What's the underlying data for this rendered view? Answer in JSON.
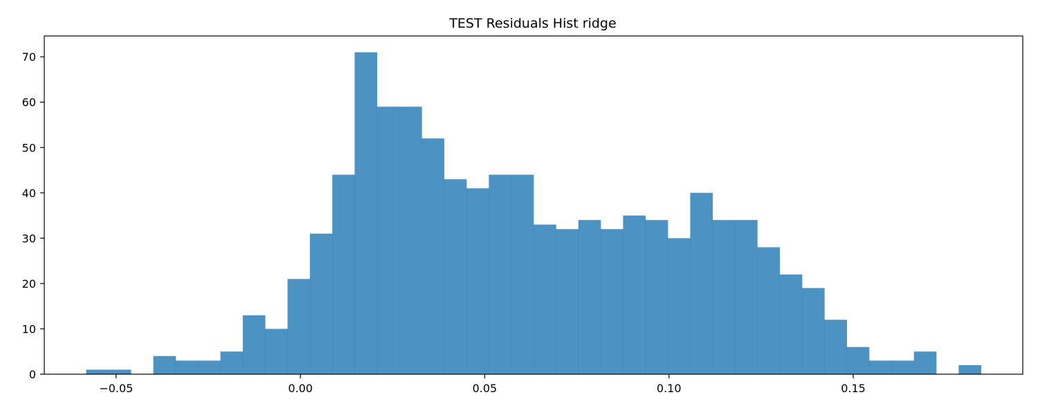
{
  "chart_data": {
    "type": "bar",
    "title": "TEST Residuals Hist ridge",
    "xlabel": "",
    "ylabel": "",
    "xlim": [
      -0.0695,
      0.196
    ],
    "ylim": [
      0,
      74.6
    ],
    "bar_color": "#1f77b4",
    "bar_opacity": 0.8,
    "grid": false,
    "bin_width": 0.006069,
    "bins": [
      {
        "start": -0.05813,
        "count": 1
      },
      {
        "start": -0.05206,
        "count": 1
      },
      {
        "start": -0.04599,
        "count": 0
      },
      {
        "start": -0.03992,
        "count": 4
      },
      {
        "start": -0.03385,
        "count": 3
      },
      {
        "start": -0.02778,
        "count": 3
      },
      {
        "start": -0.02171,
        "count": 5
      },
      {
        "start": -0.01564,
        "count": 13
      },
      {
        "start": -0.00957,
        "count": 10
      },
      {
        "start": -0.0035,
        "count": 21
      },
      {
        "start": 0.00257,
        "count": 31
      },
      {
        "start": 0.00864,
        "count": 44
      },
      {
        "start": 0.01471,
        "count": 71
      },
      {
        "start": 0.02078,
        "count": 59
      },
      {
        "start": 0.02685,
        "count": 59
      },
      {
        "start": 0.03292,
        "count": 52
      },
      {
        "start": 0.03899,
        "count": 43
      },
      {
        "start": 0.04506,
        "count": 41
      },
      {
        "start": 0.05113,
        "count": 44
      },
      {
        "start": 0.0572,
        "count": 44
      },
      {
        "start": 0.06327,
        "count": 33
      },
      {
        "start": 0.06934,
        "count": 32
      },
      {
        "start": 0.07541,
        "count": 34
      },
      {
        "start": 0.08148,
        "count": 32
      },
      {
        "start": 0.08755,
        "count": 35
      },
      {
        "start": 0.09362,
        "count": 34
      },
      {
        "start": 0.09969,
        "count": 30
      },
      {
        "start": 0.10576,
        "count": 40
      },
      {
        "start": 0.11183,
        "count": 34
      },
      {
        "start": 0.1179,
        "count": 34
      },
      {
        "start": 0.12397,
        "count": 28
      },
      {
        "start": 0.13004,
        "count": 22
      },
      {
        "start": 0.13611,
        "count": 19
      },
      {
        "start": 0.14218,
        "count": 12
      },
      {
        "start": 0.14825,
        "count": 6
      },
      {
        "start": 0.15432,
        "count": 3
      },
      {
        "start": 0.16039,
        "count": 3
      },
      {
        "start": 0.16646,
        "count": 5
      },
      {
        "start": 0.17253,
        "count": 0
      },
      {
        "start": 0.1786,
        "count": 2
      }
    ],
    "xticks": [
      {
        "value": -0.05,
        "label": "−0.05"
      },
      {
        "value": 0.0,
        "label": "0.00"
      },
      {
        "value": 0.05,
        "label": "0.05"
      },
      {
        "value": 0.1,
        "label": "0.10"
      },
      {
        "value": 0.15,
        "label": "0.15"
      }
    ],
    "yticks": [
      {
        "value": 0,
        "label": "0"
      },
      {
        "value": 10,
        "label": "10"
      },
      {
        "value": 20,
        "label": "20"
      },
      {
        "value": 30,
        "label": "30"
      },
      {
        "value": 40,
        "label": "40"
      },
      {
        "value": 50,
        "label": "50"
      },
      {
        "value": 60,
        "label": "60"
      },
      {
        "value": 70,
        "label": "70"
      }
    ]
  }
}
